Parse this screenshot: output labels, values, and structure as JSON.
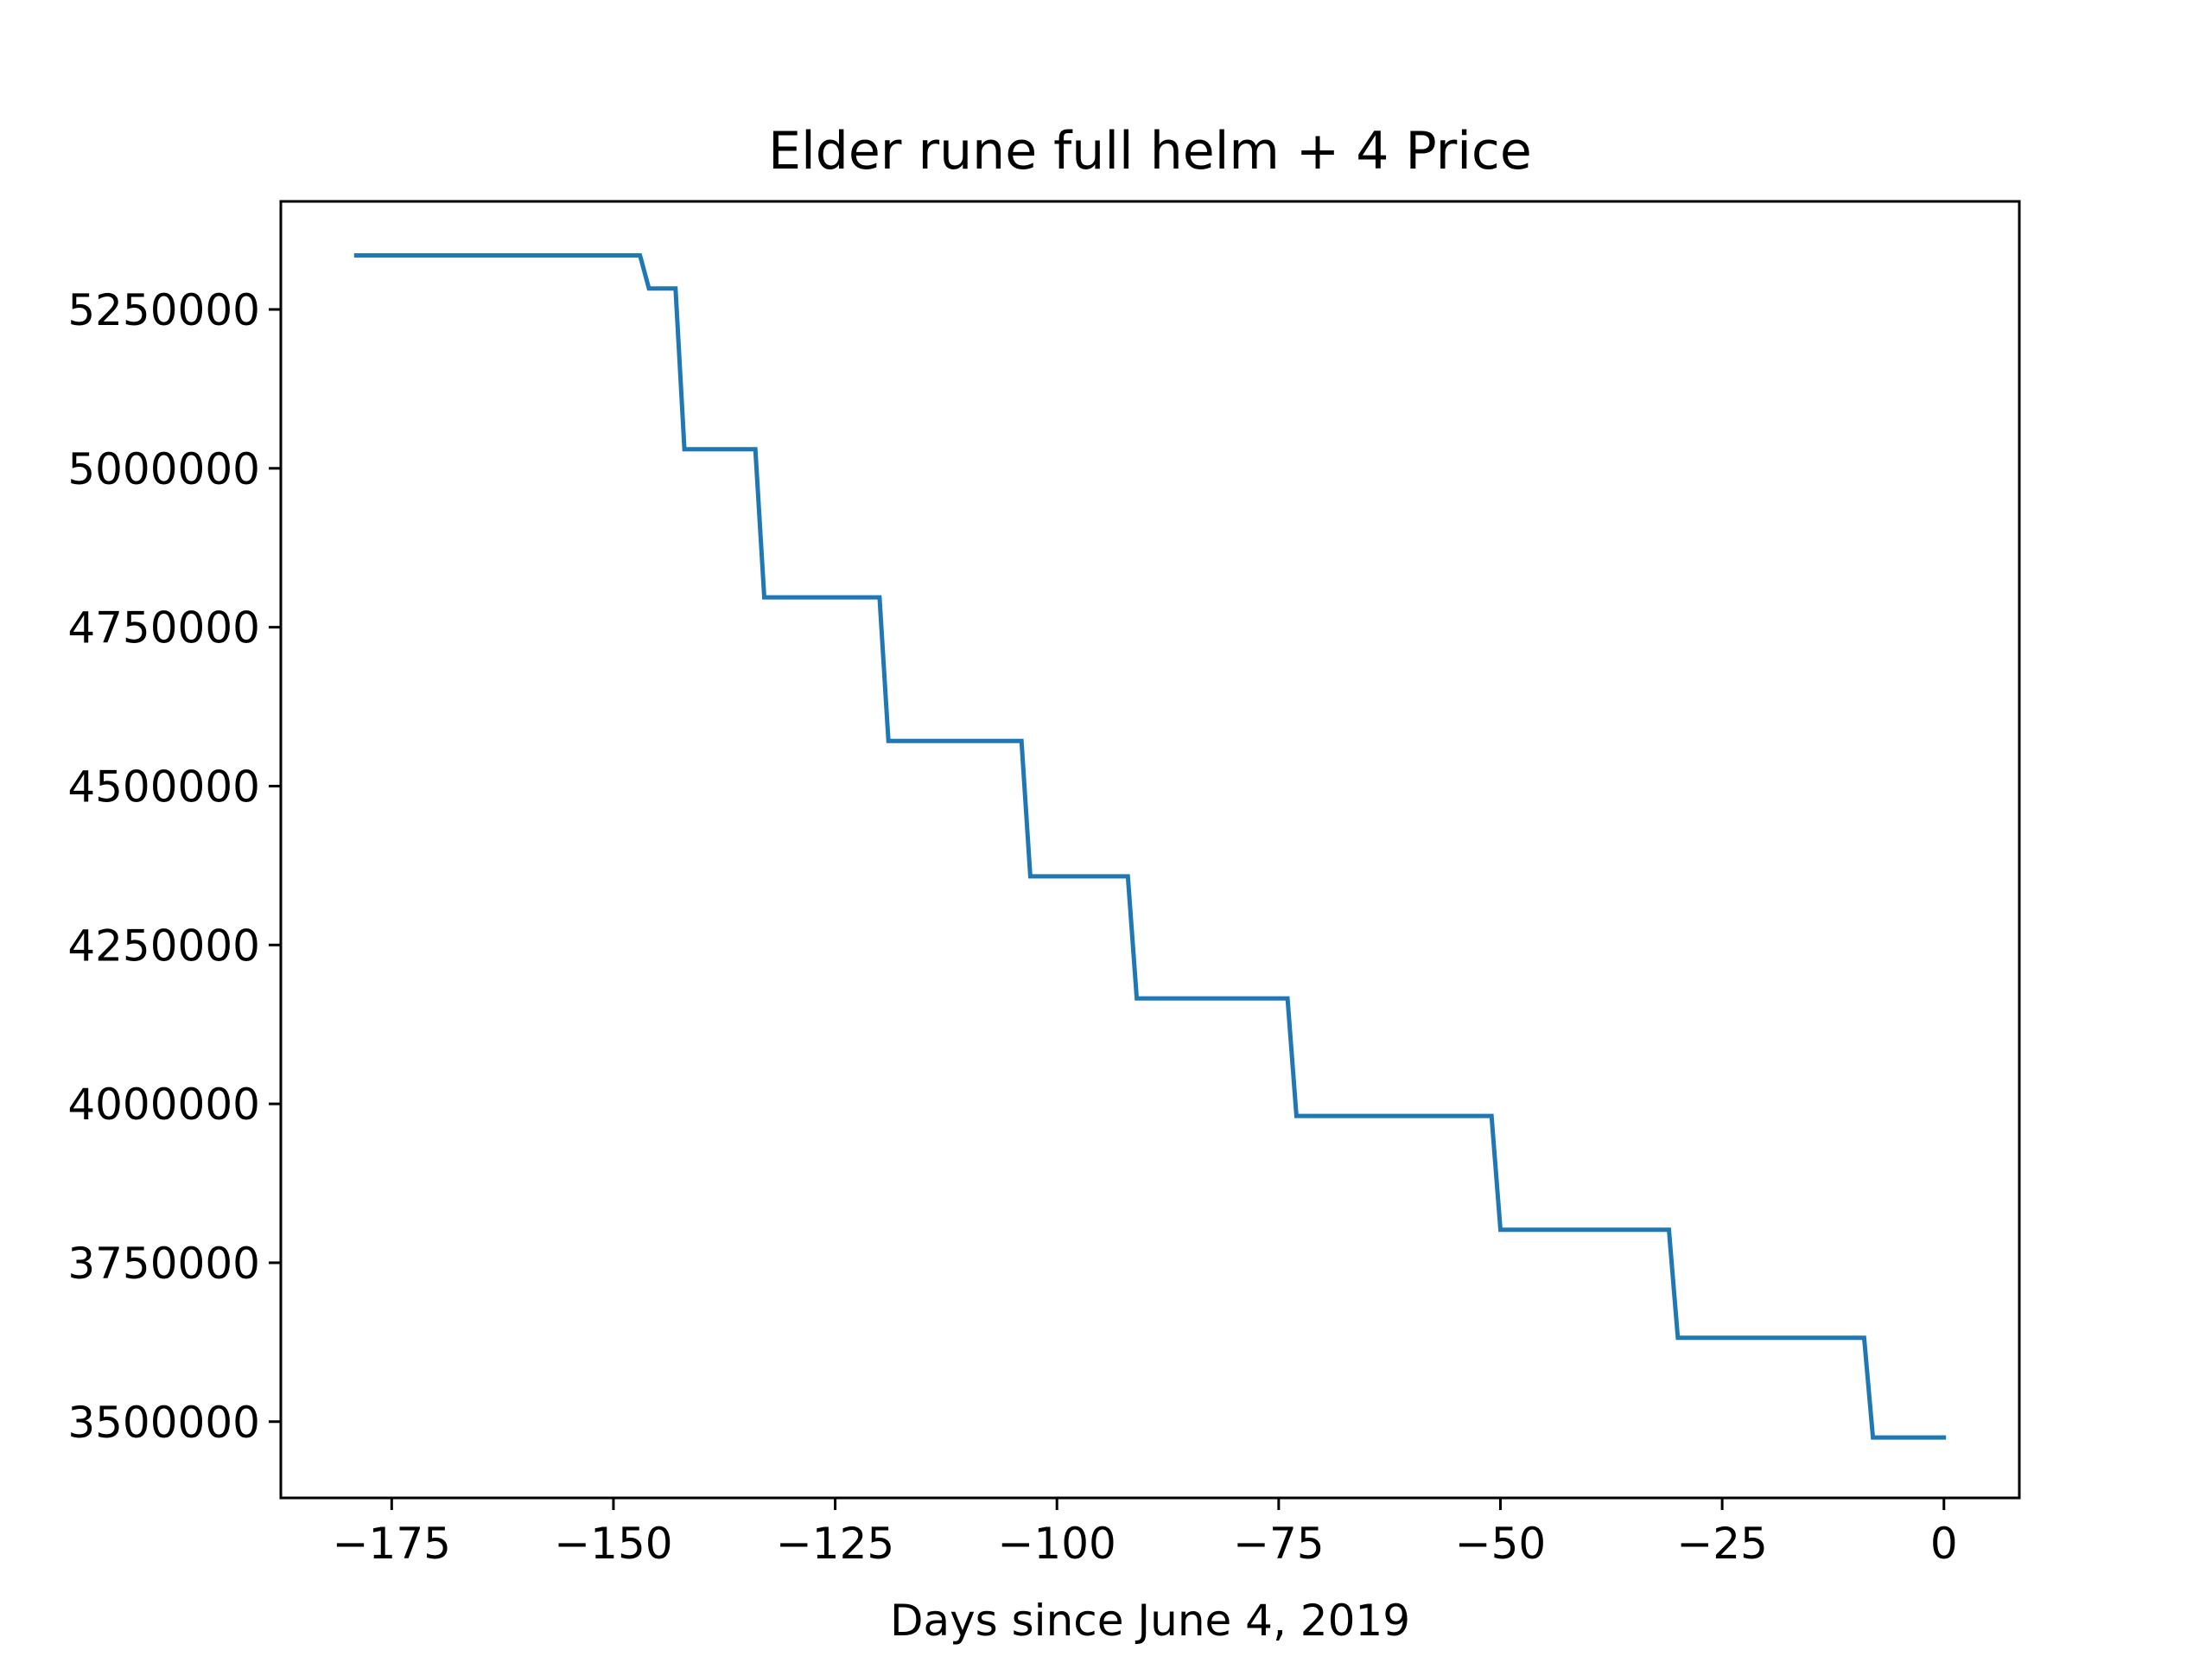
{
  "chart_data": {
    "type": "line",
    "title": "Elder rune full helm + 4 Price",
    "xlabel": "Days since June 4, 2019",
    "ylabel": "",
    "xlim": [
      -187.5,
      8.5
    ],
    "ylim": [
      3380000,
      5420000
    ],
    "xticks": [
      -175,
      -150,
      -125,
      -100,
      -75,
      -50,
      -25,
      0
    ],
    "xtick_labels": [
      "−175",
      "−150",
      "−125",
      "−100",
      "−75",
      "−50",
      "−25",
      "0"
    ],
    "yticks": [
      3500000,
      3750000,
      4000000,
      4250000,
      4500000,
      4750000,
      5000000,
      5250000
    ],
    "ytick_labels": [
      "3500000",
      "3750000",
      "4000000",
      "4250000",
      "4500000",
      "4750000",
      "5000000",
      "5250000"
    ],
    "grid": false,
    "legend": "none",
    "series": [
      {
        "color": "#1f77b4",
        "x": [
          -179,
          -147,
          -146,
          -143,
          -142,
          -134,
          -133,
          -120,
          -119,
          -104,
          -103,
          -92,
          -91,
          -74,
          -73,
          -51,
          -50,
          -31,
          -30,
          -9,
          -8,
          0
        ],
        "y": [
          5335000,
          5335000,
          5283000,
          5283000,
          5030000,
          5030000,
          4797000,
          4797000,
          4571000,
          4571000,
          4358000,
          4358000,
          4166000,
          4166000,
          3981000,
          3981000,
          3802000,
          3802000,
          3632000,
          3632000,
          3475000,
          3475000
        ]
      }
    ]
  }
}
